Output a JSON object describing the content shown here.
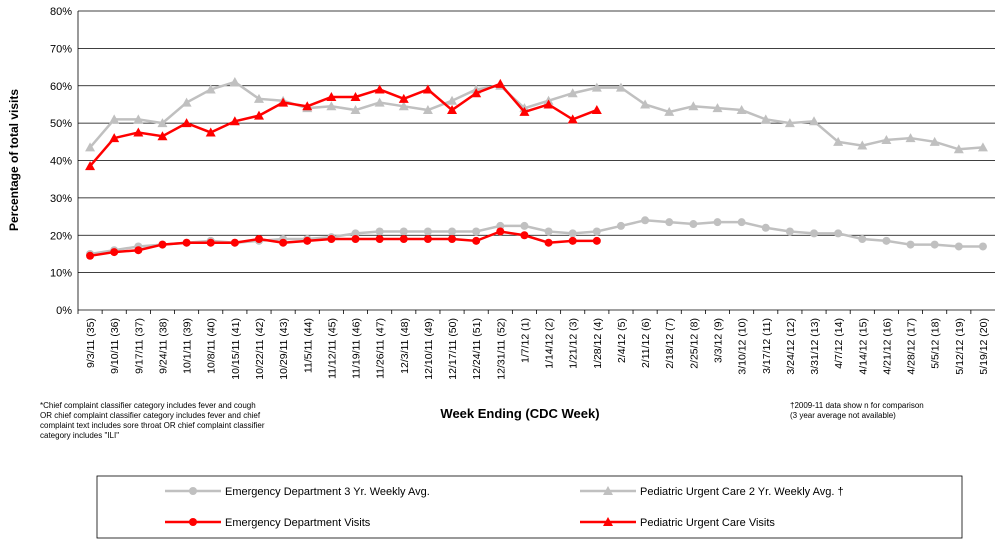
{
  "chart_data": {
    "type": "line",
    "y_label": "Percentage of total visits",
    "x_label": "Week Ending (CDC Week)",
    "footnote": [
      "*Chief complaint classifier category includes fever and cough",
      "OR chief complaint classifier category includes fever and chief",
      "complaint text includes sore throat OR chief complaint classifier",
      "category includes \"ILI\""
    ],
    "note": [
      "†2009-11 data show n for comparison",
      "(3 year average not available)"
    ],
    "categories": [
      "9/3/11 (35)",
      "9/10/11 (36)",
      "9/17/11 (37)",
      "9/24/11 (38)",
      "10/1/11 (39)",
      "10/8/11 (40)",
      "10/15/11 (41)",
      "10/22/11 (42)",
      "10/29/11 (43)",
      "11/5/11 (44)",
      "11/12/11 (45)",
      "11/19/11 (46)",
      "11/26/11 (47)",
      "12/3/11 (48)",
      "12/10/11 (49)",
      "12/17/11 (50)",
      "12/24/11 (51)",
      "12/31/11 (52)",
      "1/7/12 (1)",
      "1/14/12 (2)",
      "1/21/12 (3)",
      "1/28/12 (4)",
      "2/4/12 (5)",
      "2/11/12 (6)",
      "2/18/12 (7)",
      "2/25/12 (8)",
      "3/3/12 (9)",
      "3/10/12 (10)",
      "3/17/12 (11)",
      "3/24/12 (12)",
      "3/31/12 (13)",
      "4/7/12 (14)",
      "4/14/12 (15)",
      "4/21/12 (16)",
      "4/28/12 (17)",
      "5/5/12 (18)",
      "5/12/12 (19)",
      "5/19/12 (20)"
    ],
    "series": [
      {
        "name": "Emergency Department 3 Yr. Weekly Avg.",
        "color": "#c0c0c0",
        "marker": "circle",
        "values": [
          15,
          16,
          17,
          17.5,
          18,
          18.5,
          18,
          18.5,
          19,
          19,
          19.5,
          20.5,
          21,
          21,
          21,
          21,
          21,
          22.5,
          22.5,
          21,
          20.5,
          21,
          22.5,
          24,
          23.5,
          23,
          23.5,
          23.5,
          22,
          21,
          20.5,
          20.5,
          19,
          18.5,
          17.5,
          17.5,
          17,
          17
        ]
      },
      {
        "name": "Pediatric Urgent Care 2 Yr. Weekly Avg. †",
        "color": "#c0c0c0",
        "marker": "triangle",
        "values": [
          43.5,
          51,
          51,
          50,
          55.5,
          59,
          61,
          56.5,
          56,
          54,
          54.5,
          53.5,
          55.5,
          54.5,
          53.5,
          56,
          59,
          60,
          54,
          56,
          58,
          59.5,
          59.5,
          55,
          53,
          54.5,
          54,
          53.5,
          51,
          50,
          50.5,
          45,
          44,
          45.5,
          46,
          45,
          43,
          43.5
        ]
      },
      {
        "name": "Emergency Department Visits",
        "color": "#ff0000",
        "marker": "circle",
        "values": [
          14.5,
          15.5,
          16,
          17.5,
          18,
          18,
          18,
          19,
          18,
          18.5,
          19,
          19,
          19,
          19,
          19,
          19,
          18.5,
          21,
          20,
          18,
          18.5,
          18.5,
          null,
          null,
          null,
          null,
          null,
          null,
          null,
          null,
          null,
          null,
          null,
          null,
          null,
          null,
          null,
          null
        ]
      },
      {
        "name": "Pediatric Urgent Care Visits",
        "color": "#ff0000",
        "marker": "triangle",
        "values": [
          38.5,
          46,
          47.5,
          46.5,
          50,
          47.5,
          50.5,
          52,
          55.5,
          54.5,
          57,
          57,
          59,
          56.5,
          59,
          53.5,
          58,
          60.5,
          53,
          55,
          51,
          53.5,
          null,
          null,
          null,
          null,
          null,
          null,
          null,
          null,
          null,
          null,
          null,
          null,
          null,
          null,
          null,
          null
        ]
      }
    ],
    "ylim": [
      0,
      80
    ],
    "yticks": [
      {
        "value": 0,
        "label": "0%"
      },
      {
        "value": 10,
        "label": "10%"
      },
      {
        "value": 20,
        "label": "20%"
      },
      {
        "value": 30,
        "label": "30%"
      },
      {
        "value": 40,
        "label": "40%"
      },
      {
        "value": 50,
        "label": "50%"
      },
      {
        "value": 60,
        "label": "60%"
      },
      {
        "value": 70,
        "label": "70%"
      },
      {
        "value": 80,
        "label": "80%"
      }
    ],
    "grid": true
  }
}
